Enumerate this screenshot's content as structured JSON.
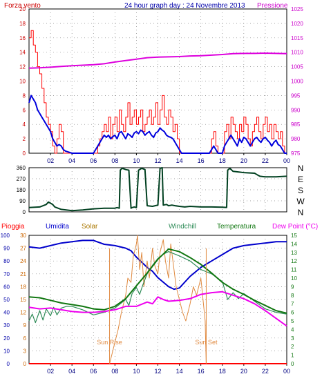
{
  "page_title": "24 hour graph day : 24 Novembre 2013",
  "colors": {
    "wind": "#ff0000",
    "gust": "#0000dd",
    "pressure": "#dd00dd",
    "direction": "#004020",
    "rain": "#ff0000",
    "humidity": "#0000cc",
    "solar": "#e08a40",
    "windchill": "#2e8b57",
    "temperature": "#117711",
    "dewpoint": "#ee00ee",
    "grid": "#808080",
    "axis_label_left": "#cc0000",
    "axis_label_right_top": "#cc00cc",
    "axis_label_right_bottom": "#117711",
    "axis_label_right_dir": "#000000"
  },
  "chart_data": [
    {
      "id": "wind",
      "type": "line",
      "title": "24 hour graph day : 24 Novembre 2013",
      "legend_left": "Forza vento",
      "legend_right": "Pressione",
      "x_ticks": [
        "02",
        "04",
        "06",
        "08",
        "10",
        "12",
        "14",
        "16",
        "18",
        "20",
        "22",
        "00"
      ],
      "xlim": [
        0,
        24
      ],
      "ylim": [
        0,
        20
      ],
      "y_ticks": [
        0,
        2,
        4,
        6,
        8,
        10,
        12,
        14,
        16,
        18,
        20
      ],
      "y2lim": [
        975,
        1025
      ],
      "y2_ticks": [
        975,
        980,
        985,
        990,
        995,
        1000,
        1005,
        1010,
        1015,
        1020,
        1025
      ],
      "grid": true,
      "series": [
        {
          "key": "wind",
          "axis": "left",
          "x": [
            0,
            0.2,
            0.4,
            0.6,
            0.8,
            1,
            1.2,
            1.4,
            1.6,
            1.8,
            2,
            2.2,
            2.4,
            2.6,
            2.8,
            3,
            3.2,
            3.4,
            3.6,
            3.8,
            4,
            4.2,
            4.4,
            4.6,
            4.8,
            5,
            5.2,
            5.4,
            5.6,
            5.8,
            6,
            6.2,
            6.4,
            6.6,
            6.8,
            7,
            7.2,
            7.4,
            7.6,
            7.8,
            8,
            8.2,
            8.4,
            8.6,
            8.8,
            9,
            9.2,
            9.4,
            9.6,
            9.8,
            10,
            10.2,
            10.4,
            10.6,
            10.8,
            11,
            11.2,
            11.4,
            11.6,
            11.8,
            12,
            12.2,
            12.4,
            12.6,
            12.8,
            13,
            13.2,
            13.4,
            13.6,
            13.8,
            14,
            14.2,
            14.4,
            14.6,
            14.8,
            15,
            15.2,
            15.4,
            15.6,
            15.8,
            16,
            16.2,
            16.4,
            16.6,
            16.8,
            17,
            17.2,
            17.4,
            17.6,
            17.8,
            18,
            18.2,
            18.4,
            18.6,
            18.8,
            19,
            19.2,
            19.4,
            19.6,
            19.8,
            20,
            20.2,
            20.4,
            20.6,
            20.8,
            21,
            21.2,
            21.4,
            21.6,
            21.8,
            22,
            22.2,
            22.4,
            22.6,
            22.8,
            23,
            23.2,
            23.4,
            23.6,
            23.8,
            24
          ],
          "values": [
            16,
            17,
            15,
            14,
            12,
            11,
            9,
            7,
            5,
            4,
            3,
            1,
            0,
            2,
            4,
            3,
            0,
            0,
            0,
            0,
            0,
            0,
            0,
            0,
            0,
            0,
            0,
            0,
            0,
            0,
            0,
            0,
            1,
            2,
            3,
            4,
            3,
            5,
            2,
            4,
            5,
            3,
            6,
            4,
            3,
            5,
            7,
            4,
            5,
            6,
            4,
            5,
            6,
            3,
            4,
            5,
            6,
            4,
            5,
            7,
            4,
            6,
            8,
            5,
            4,
            6,
            5,
            3,
            4,
            2,
            0,
            0,
            0,
            0,
            0,
            0,
            0,
            0,
            0,
            0,
            0,
            0,
            0,
            0,
            0,
            2,
            3,
            1,
            0,
            0,
            0,
            3,
            4,
            2,
            5,
            4,
            3,
            2,
            4,
            3,
            5,
            4,
            2,
            1,
            3,
            4,
            5,
            3,
            2,
            4,
            5,
            3,
            4,
            2,
            4,
            3,
            2,
            3,
            1,
            0,
            0
          ]
        },
        {
          "key": "gust",
          "axis": "left",
          "x": [
            0,
            0.2,
            0.4,
            0.6,
            0.8,
            1,
            1.2,
            1.4,
            1.6,
            1.8,
            2,
            2.2,
            2.4,
            2.6,
            2.8,
            3,
            3.2,
            3.4,
            3.6,
            3.8,
            4,
            4.2,
            4.4,
            4.6,
            4.8,
            5,
            5.2,
            5.4,
            5.6,
            5.8,
            6,
            6.2,
            6.4,
            6.6,
            6.8,
            7,
            7.2,
            7.4,
            7.6,
            7.8,
            8,
            8.2,
            8.4,
            8.6,
            8.8,
            9,
            9.2,
            9.4,
            9.6,
            9.8,
            10,
            10.2,
            10.4,
            10.6,
            10.8,
            11,
            11.2,
            11.4,
            11.6,
            11.8,
            12,
            12.2,
            12.4,
            12.6,
            12.8,
            13,
            13.2,
            13.4,
            13.6,
            13.8,
            14,
            14.2,
            14.4,
            14.6,
            14.8,
            15,
            15.2,
            15.4,
            15.6,
            15.8,
            16,
            16.2,
            16.4,
            16.6,
            16.8,
            17,
            17.2,
            17.4,
            17.6,
            17.8,
            18,
            18.2,
            18.4,
            18.6,
            18.8,
            19,
            19.2,
            19.4,
            19.6,
            19.8,
            20,
            20.2,
            20.4,
            20.6,
            20.8,
            21,
            21.2,
            21.4,
            21.6,
            21.8,
            22,
            22.2,
            22.4,
            22.6,
            22.8,
            23,
            23.2,
            23.4,
            23.6,
            23.8,
            24
          ],
          "values": [
            7,
            8,
            7.5,
            7,
            6,
            5.5,
            5,
            4.5,
            4,
            3.5,
            3,
            2,
            1.5,
            1,
            1.2,
            1,
            0.5,
            0.3,
            0.2,
            0.1,
            0,
            0,
            0,
            0,
            0,
            0,
            0,
            0,
            0,
            0,
            0,
            0.5,
            1,
            1.5,
            2,
            2.5,
            2.2,
            2.5,
            2,
            2.3,
            2.5,
            2,
            2.8,
            3,
            2.5,
            2,
            2.7,
            2.5,
            2.2,
            2.8,
            3,
            2.7,
            3.2,
            3,
            2.5,
            2.8,
            3,
            2.5,
            2.2,
            2.8,
            3,
            3.5,
            3.2,
            3,
            2.5,
            2.3,
            2.2,
            2,
            1.5,
            1,
            0.5,
            0,
            0,
            0,
            0,
            0,
            0,
            0,
            0,
            0,
            0,
            0,
            0,
            0,
            0,
            0.5,
            1,
            0.5,
            0,
            0,
            0,
            1,
            1.5,
            2,
            2.5,
            2,
            1.5,
            1,
            2,
            1.5,
            2.2,
            2,
            1.5,
            1,
            1.5,
            2,
            2.2,
            1.8,
            1.5,
            2,
            2.2,
            1.8,
            1.5,
            1,
            1.5,
            1.8,
            1.2,
            1,
            0.5,
            0,
            0
          ]
        },
        {
          "key": "pressure",
          "axis": "right",
          "x": [
            0,
            1,
            2,
            3,
            4,
            5,
            6,
            7,
            8,
            9,
            10,
            11,
            12,
            13,
            14,
            15,
            16,
            17,
            18,
            19,
            20,
            21,
            22,
            23,
            24
          ],
          "values": [
            1004.5,
            1004.6,
            1004.8,
            1005.1,
            1005.3,
            1005.5,
            1005.7,
            1006,
            1006.6,
            1007.1,
            1007.6,
            1008.1,
            1008.3,
            1008.4,
            1008.5,
            1008.7,
            1008.8,
            1009,
            1009.2,
            1009.5,
            1009.6,
            1009.6,
            1009.7,
            1009.6,
            1009.5
          ]
        }
      ]
    },
    {
      "id": "direction",
      "type": "line",
      "xlim": [
        0,
        24
      ],
      "ylim": [
        0,
        360
      ],
      "y_ticks": [
        0,
        90,
        180,
        270,
        360
      ],
      "y2_ticks": [
        "N",
        "W",
        "S",
        "E",
        "N"
      ],
      "grid": true,
      "series": [
        {
          "key": "direction",
          "x": [
            0,
            1,
            1.6,
            1.8,
            2.2,
            2.4,
            3,
            4,
            5,
            6,
            7,
            7.5,
            8,
            8.2,
            8.4,
            8.5,
            8.6,
            8.7,
            9,
            9.3,
            9.5,
            9.6,
            9.8,
            10,
            10.2,
            10.4,
            10.5,
            10.8,
            11,
            11.5,
            12,
            12.2,
            12.4,
            12.5,
            12.8,
            13,
            13.3,
            13.6,
            14,
            14.5,
            15,
            16,
            17,
            18,
            18.4,
            18.5,
            18.7,
            19,
            20,
            21,
            21.3,
            21.5,
            22,
            23,
            24
          ],
          "values": [
            35,
            40,
            60,
            80,
            60,
            40,
            20,
            10,
            15,
            25,
            30,
            30,
            30,
            35,
            30,
            340,
            350,
            355,
            345,
            340,
            30,
            35,
            40,
            35,
            340,
            350,
            355,
            345,
            50,
            45,
            55,
            355,
            360,
            55,
            60,
            50,
            55,
            50,
            45,
            40,
            45,
            40,
            40,
            38,
            36,
            340,
            355,
            330,
            320,
            315,
            300,
            290,
            285,
            285,
            290
          ]
        }
      ]
    },
    {
      "id": "weather",
      "type": "line",
      "legend": [
        "Pioggia",
        "Umidita",
        "Solar",
        "Windchill",
        "Temperatura",
        "Dew Point (°C)"
      ],
      "xlim": [
        0,
        24
      ],
      "ylim": [
        0,
        100
      ],
      "y_ticks": [
        0,
        10,
        20,
        30,
        40,
        50,
        60,
        70,
        80,
        90,
        100
      ],
      "y_inner_ticks": [
        0,
        3,
        6,
        9,
        12,
        15,
        18,
        21,
        24,
        27,
        30
      ],
      "y2lim": [
        0,
        15
      ],
      "y2_ticks": [
        0,
        1,
        2,
        3,
        4,
        5,
        6,
        7,
        8,
        9,
        10,
        11,
        12,
        13,
        14,
        15
      ],
      "annotations": [
        {
          "text": "Sun Rise",
          "x": 7.5
        },
        {
          "text": "Sun Set",
          "x": 16.5
        }
      ],
      "grid": true,
      "series": [
        {
          "key": "rain",
          "x": [
            0,
            24
          ],
          "values": [
            0,
            0
          ]
        },
        {
          "key": "humidity",
          "x": [
            0,
            1,
            2,
            3,
            4,
            5,
            6,
            7,
            8,
            9,
            9.5,
            10,
            11,
            11.5,
            12,
            13,
            13.5,
            14,
            15,
            16,
            17,
            18,
            19,
            20,
            21,
            22,
            23,
            24
          ],
          "values": [
            91,
            90,
            92,
            94,
            95,
            96,
            96,
            93,
            92,
            90,
            88,
            83,
            75,
            72,
            67,
            60,
            58,
            59,
            68,
            75,
            80,
            85,
            90,
            92,
            93,
            94,
            95,
            95
          ]
        },
        {
          "key": "solar",
          "x": [
            7.5,
            7.7,
            8,
            8.3,
            8.6,
            9,
            9.2,
            9.5,
            9.7,
            10,
            10.1,
            10.3,
            10.5,
            10.7,
            11,
            11.2,
            11.5,
            11.7,
            12,
            12.2,
            12.5,
            12.7,
            13,
            13.2,
            13.5,
            13.7,
            14,
            14.3,
            14.6,
            15,
            15.3,
            15.6,
            16,
            16.2,
            16.4,
            16.5
          ],
          "values": [
            0,
            2,
            5,
            8,
            12,
            16,
            20,
            19,
            25,
            28,
            30,
            22,
            26,
            18,
            24,
            20,
            27,
            23,
            21,
            26,
            29,
            24,
            20,
            28,
            22,
            18,
            15,
            12,
            10,
            14,
            18,
            16,
            20,
            15,
            10,
            0
          ]
        },
        {
          "key": "windchill",
          "x": [
            0,
            0.3,
            0.6,
            1,
            1.3,
            1.6,
            2,
            2.3,
            2.6,
            3,
            3.5,
            4,
            5,
            6,
            7,
            8,
            9,
            9.3,
            9.6,
            10,
            10.3,
            10.6,
            11,
            11.5,
            12,
            12.5,
            13,
            14,
            15,
            16,
            17,
            18,
            18.5,
            19,
            19.5,
            20,
            21,
            22,
            23,
            24
          ],
          "values": [
            5,
            5.8,
            4.8,
            6.2,
            5.1,
            6.4,
            5.6,
            6.6,
            5.7,
            6.5,
            6.7,
            6.7,
            6.3,
            5.7,
            6.0,
            6.5,
            7.5,
            6.8,
            8.2,
            8.9,
            8.1,
            9.2,
            10.5,
            11.5,
            12.3,
            12.8,
            13.1,
            12.6,
            12.0,
            11.0,
            10.5,
            9.6,
            7.5,
            8.3,
            7.6,
            8.2,
            7.3,
            6.4,
            6.0,
            5.8
          ]
        },
        {
          "key": "temperature",
          "x": [
            0,
            1,
            2,
            3,
            4,
            5,
            6,
            7,
            8,
            9,
            10,
            11,
            12,
            13,
            14,
            15,
            16,
            17,
            18,
            19,
            20,
            21,
            22,
            23,
            24
          ],
          "values": [
            7.8,
            7.7,
            7.4,
            7.1,
            6.9,
            6.7,
            6.4,
            6.3,
            6.7,
            7.6,
            9.1,
            10.6,
            12.2,
            13.4,
            13.1,
            12.4,
            11.6,
            10.6,
            9.5,
            8.7,
            8.1,
            7.4,
            6.8,
            6.2,
            5.9
          ]
        },
        {
          "key": "dewpoint",
          "x": [
            0,
            1,
            2,
            3,
            4,
            5,
            6,
            7,
            8,
            9,
            10,
            11,
            11.5,
            12,
            12.5,
            13,
            14,
            15,
            16,
            17,
            18,
            19,
            20,
            21,
            22,
            23,
            24
          ],
          "values": [
            6.6,
            6.4,
            6.5,
            6.3,
            6.1,
            6.0,
            6.0,
            6.1,
            6.3,
            6.7,
            6.7,
            7.2,
            7.0,
            7.8,
            7.5,
            7.3,
            7.4,
            7.6,
            8.1,
            8.3,
            8.4,
            8.0,
            7.6,
            7.0,
            6.2,
            5.3,
            4.4
          ]
        }
      ]
    }
  ]
}
